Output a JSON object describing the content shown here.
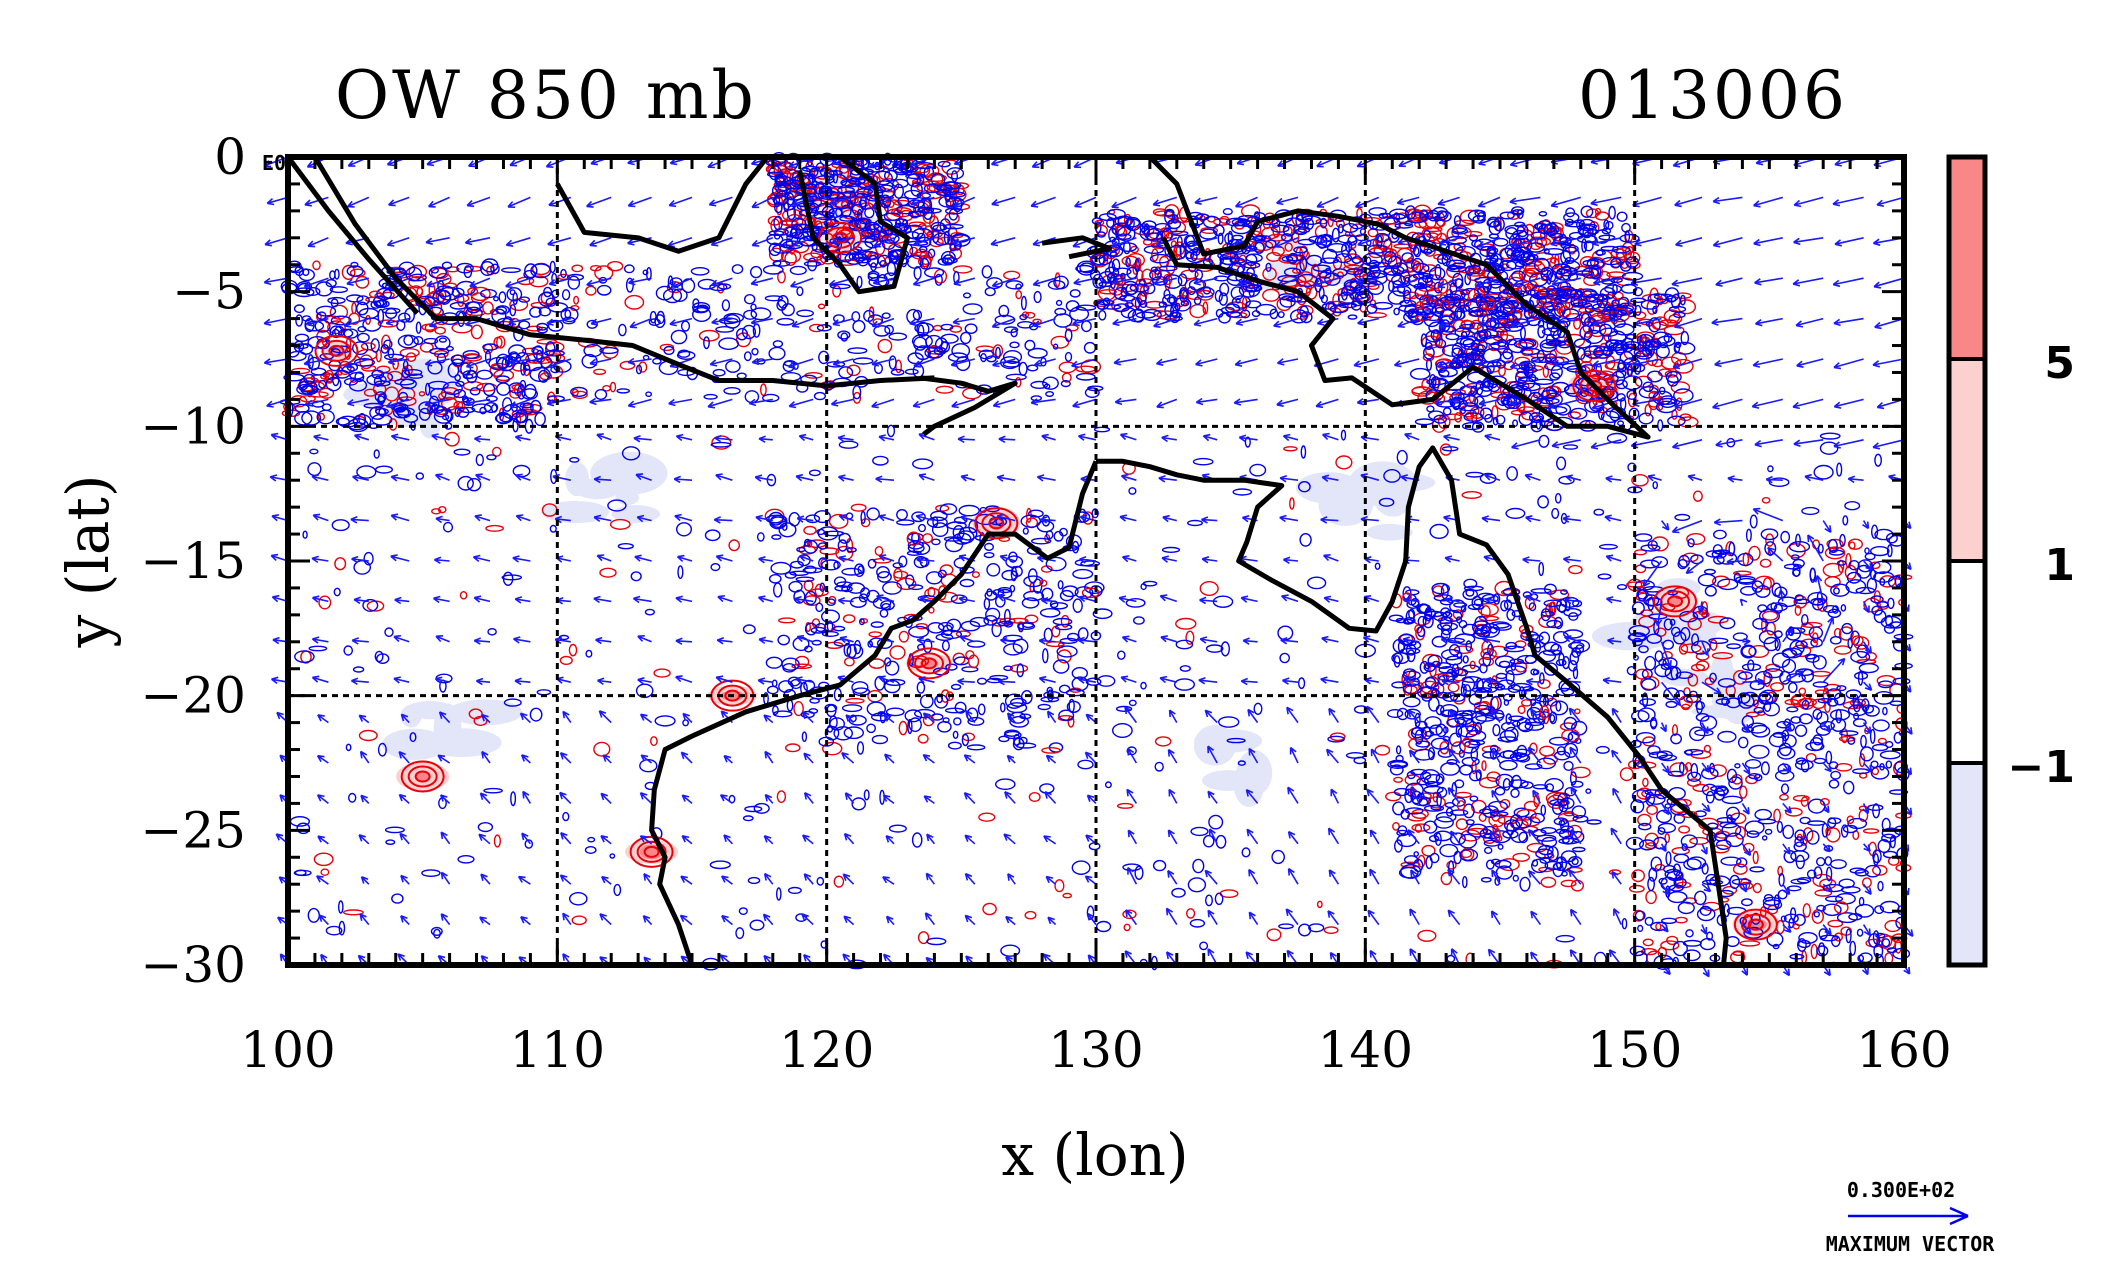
{
  "title_left": "OW 850 mb",
  "title_right": "013006",
  "corner_label": "E0",
  "chart_data": {
    "type": "map",
    "xlabel": "x (lon)",
    "ylabel": "y (lat)",
    "xlim": [
      100,
      160
    ],
    "ylim": [
      -30,
      0
    ],
    "x_ticks": [
      100,
      110,
      120,
      130,
      140,
      150,
      160
    ],
    "y_ticks": [
      0,
      -5,
      -10,
      -15,
      -20,
      -25,
      -30
    ],
    "y_tick_labels": [
      "0",
      "−5",
      "−10",
      "−15",
      "−20",
      "−25",
      "−30"
    ],
    "grid": true,
    "colorbar": {
      "levels": [
        -1,
        1,
        5
      ],
      "level_labels": [
        "−1",
        "1",
        "5"
      ],
      "colors": [
        "#e3e5f8",
        "#ffffff",
        "#fdd0d0",
        "#f98787"
      ]
    },
    "contour_colors": {
      "positive": "#e8000b",
      "negative": "#0000ee",
      "coast": "#000000"
    },
    "vector_key": {
      "value": "0.300E+02",
      "label": "MAXIMUM VECTOR"
    }
  }
}
